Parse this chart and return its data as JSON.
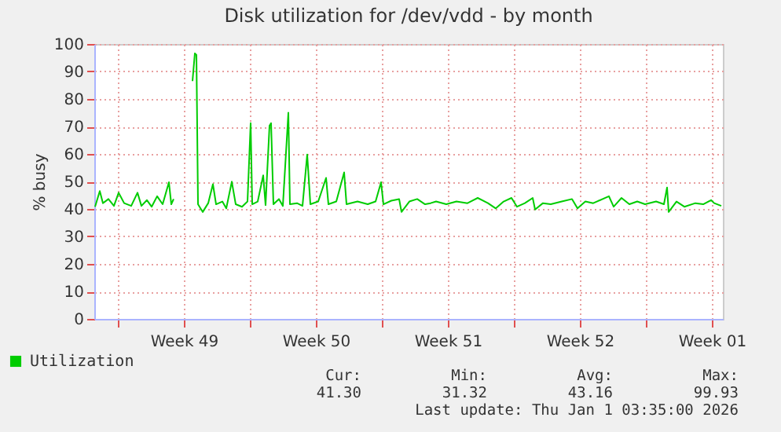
{
  "chart_data": {
    "type": "line",
    "title": "Disk utilization for /dev/vdd - by month",
    "ylabel": "% busy",
    "xlim": [
      "2025-11-29T18:00",
      "2026-01-02T02:00"
    ],
    "ylim": [
      0,
      100
    ],
    "yticks": [
      0,
      10,
      20,
      30,
      40,
      50,
      60,
      70,
      80,
      90,
      100
    ],
    "xticks": [
      {
        "value": "2025-12-01T00:00",
        "label": null
      },
      {
        "value": "2025-12-04T12:00",
        "label": "Week 49"
      },
      {
        "value": "2025-12-08T00:00",
        "label": null
      },
      {
        "value": "2025-12-11T12:00",
        "label": "Week 50"
      },
      {
        "value": "2025-12-15T00:00",
        "label": null
      },
      {
        "value": "2025-12-18T12:00",
        "label": "Week 51"
      },
      {
        "value": "2025-12-22T00:00",
        "label": null
      },
      {
        "value": "2025-12-25T12:00",
        "label": "Week 52"
      },
      {
        "value": "2025-12-29T00:00",
        "label": null
      },
      {
        "value": "2026-01-01T12:00",
        "label": "Week 01"
      }
    ],
    "grid": true,
    "legend": "bottom left",
    "annotations": [
      "Cur:",
      "Min:",
      "Avg:",
      "Max:",
      "41.30",
      "31.32",
      "43.16",
      "99.93",
      "Last update: Thu Jan  1 03:35:00 2026"
    ],
    "x": [
      "2025-11-29T19:00",
      "2025-11-30T01:00",
      "2025-11-30T05:00",
      "2025-11-30T12:00",
      "2025-11-30T19:00",
      "2025-12-01T01:00",
      "2025-12-01T08:00",
      "2025-12-01T17:00",
      "2025-12-02T01:00",
      "2025-12-02T06:00",
      "2025-12-02T13:00",
      "2025-12-02T19:00",
      "2025-12-03T02:00",
      "2025-12-03T09:00",
      "2025-12-03T17:00",
      "2025-12-03T20:00",
      "2025-12-03T23:00",
      "2025-12-04T10:00",
      "2025-12-04T23:00",
      "2025-12-05T02:00",
      "2025-12-05T04:00",
      "2025-12-05T06:00",
      "2025-12-05T12:00",
      "2025-12-05T19:00",
      "2025-12-06T01:00",
      "2025-12-06T05:00",
      "2025-12-06T13:00",
      "2025-12-06T18:00",
      "2025-12-07T01:00",
      "2025-12-07T06:00",
      "2025-12-07T14:00",
      "2025-12-07T21:00",
      "2025-12-08T01:00",
      "2025-12-08T03:00",
      "2025-12-08T10:00",
      "2025-12-08T17:00",
      "2025-12-08T20:00",
      "2025-12-09T01:00",
      "2025-12-09T03:00",
      "2025-12-09T06:00",
      "2025-12-09T13:00",
      "2025-12-09T18:00",
      "2025-12-10T01:00",
      "2025-12-10T03:00",
      "2025-12-10T12:00",
      "2025-12-10T19:00",
      "2025-12-11T01:00",
      "2025-12-11T05:00",
      "2025-12-11T15:00",
      "2025-12-12T01:00",
      "2025-12-12T04:00",
      "2025-12-12T14:00",
      "2025-12-13T00:00",
      "2025-12-13T03:00",
      "2025-12-13T17:00",
      "2025-12-14T06:00",
      "2025-12-14T16:00",
      "2025-12-14T23:00",
      "2025-12-15T02:00",
      "2025-12-15T12:00",
      "2025-12-15T22:00",
      "2025-12-16T01:00",
      "2025-12-16T11:00",
      "2025-12-16T21:00",
      "2025-12-17T07:00",
      "2025-12-17T14:00",
      "2025-12-17T21:00",
      "2025-12-18T10:00",
      "2025-12-18T23:00",
      "2025-12-19T13:00",
      "2025-12-20T02:00",
      "2025-12-20T15:00",
      "2025-12-21T01:00",
      "2025-12-21T11:00",
      "2025-12-21T21:00",
      "2025-12-22T04:00",
      "2025-12-22T14:00",
      "2025-12-23T00:00",
      "2025-12-23T03:00",
      "2025-12-23T13:00",
      "2025-12-23T23:00",
      "2025-12-24T13:00",
      "2025-12-25T02:00",
      "2025-12-25T09:00",
      "2025-12-25T19:00",
      "2025-12-26T05:00",
      "2025-12-27T01:00",
      "2025-12-27T07:00",
      "2025-12-27T17:00",
      "2025-12-28T03:00",
      "2025-12-28T13:00",
      "2025-12-28T23:00",
      "2025-12-29T13:00",
      "2025-12-29T23:00",
      "2025-12-30T03:00",
      "2025-12-30T05:00",
      "2025-12-30T15:00",
      "2025-12-31T01:00",
      "2025-12-31T15:00",
      "2026-01-01T01:00",
      "2026-01-01T11:00",
      "2026-01-01T15:00",
      "2026-01-02T00:00"
    ],
    "series": [
      {
        "name": "Utilization",
        "color": "#00cc00",
        "values": [
          40.8,
          46.5,
          42.1,
          43.6,
          41.1,
          45.9,
          42.1,
          41.1,
          45.9,
          41.1,
          43.2,
          40.8,
          44.6,
          41.7,
          49.7,
          41.7,
          43.6,
          null,
          86.5,
          96.6,
          96,
          41.7,
          38.9,
          42.1,
          49,
          41.7,
          42.7,
          40.2,
          49.9,
          41.7,
          40.8,
          42.7,
          71.2,
          41.7,
          42.7,
          52.2,
          41.4,
          70.3,
          71.2,
          41.7,
          43.6,
          41.1,
          75,
          41.7,
          42.1,
          41.1,
          59.8,
          41.7,
          42.7,
          51.3,
          41.7,
          42.7,
          53.3,
          41.7,
          42.7,
          41.7,
          42.7,
          49.7,
          41.7,
          43,
          43.6,
          38.9,
          42.7,
          43.6,
          41.7,
          42.1,
          42.7,
          41.7,
          42.7,
          42.1,
          44,
          42.1,
          40.2,
          42.7,
          44,
          40.8,
          42.1,
          44,
          39.8,
          42.1,
          41.7,
          42.7,
          43.6,
          40.2,
          42.7,
          42.1,
          44.6,
          40.8,
          44,
          41.7,
          42.7,
          41.7,
          42.7,
          41.7,
          47.8,
          38.9,
          42.7,
          40.8,
          42.1,
          41.7,
          43.2,
          42.1,
          41.1
        ]
      }
    ]
  }
}
